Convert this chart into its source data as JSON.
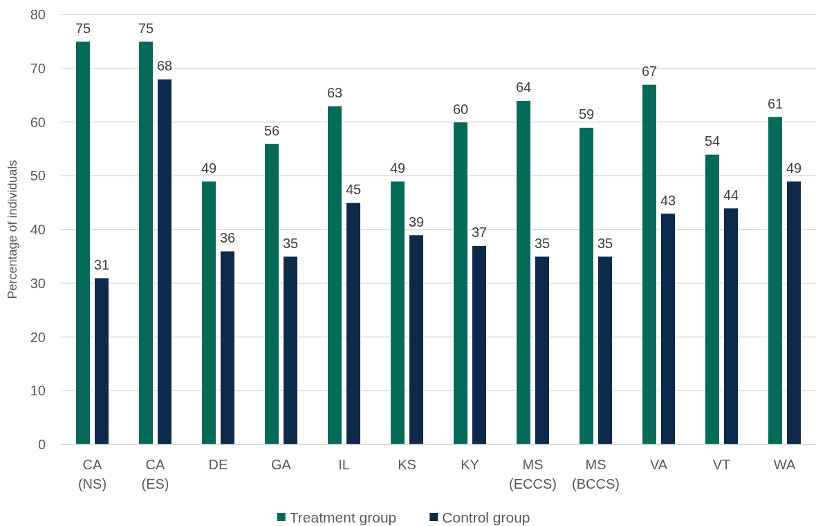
{
  "chart_data": {
    "type": "bar",
    "ylabel": "Percentage of individuals",
    "categories": [
      "CA (NS)",
      "CA (ES)",
      "DE",
      "GA",
      "IL",
      "KS",
      "KY",
      "MS (ECCS)",
      "MS (BCCS)",
      "VA",
      "VT",
      "WA"
    ],
    "series": [
      {
        "name": "Treatment group",
        "color": "#066a5a",
        "values": [
          75,
          75,
          49,
          56,
          63,
          49,
          60,
          64,
          59,
          67,
          54,
          61
        ]
      },
      {
        "name": "Control group",
        "color": "#0d2a4a",
        "values": [
          31,
          68,
          36,
          35,
          45,
          39,
          37,
          35,
          35,
          43,
          44,
          49
        ]
      }
    ],
    "ylim": [
      0,
      80
    ],
    "yticks": [
      0,
      10,
      20,
      30,
      40,
      50,
      60,
      70,
      80
    ],
    "grid": "y",
    "legend": "bottom",
    "data_labels": true
  }
}
